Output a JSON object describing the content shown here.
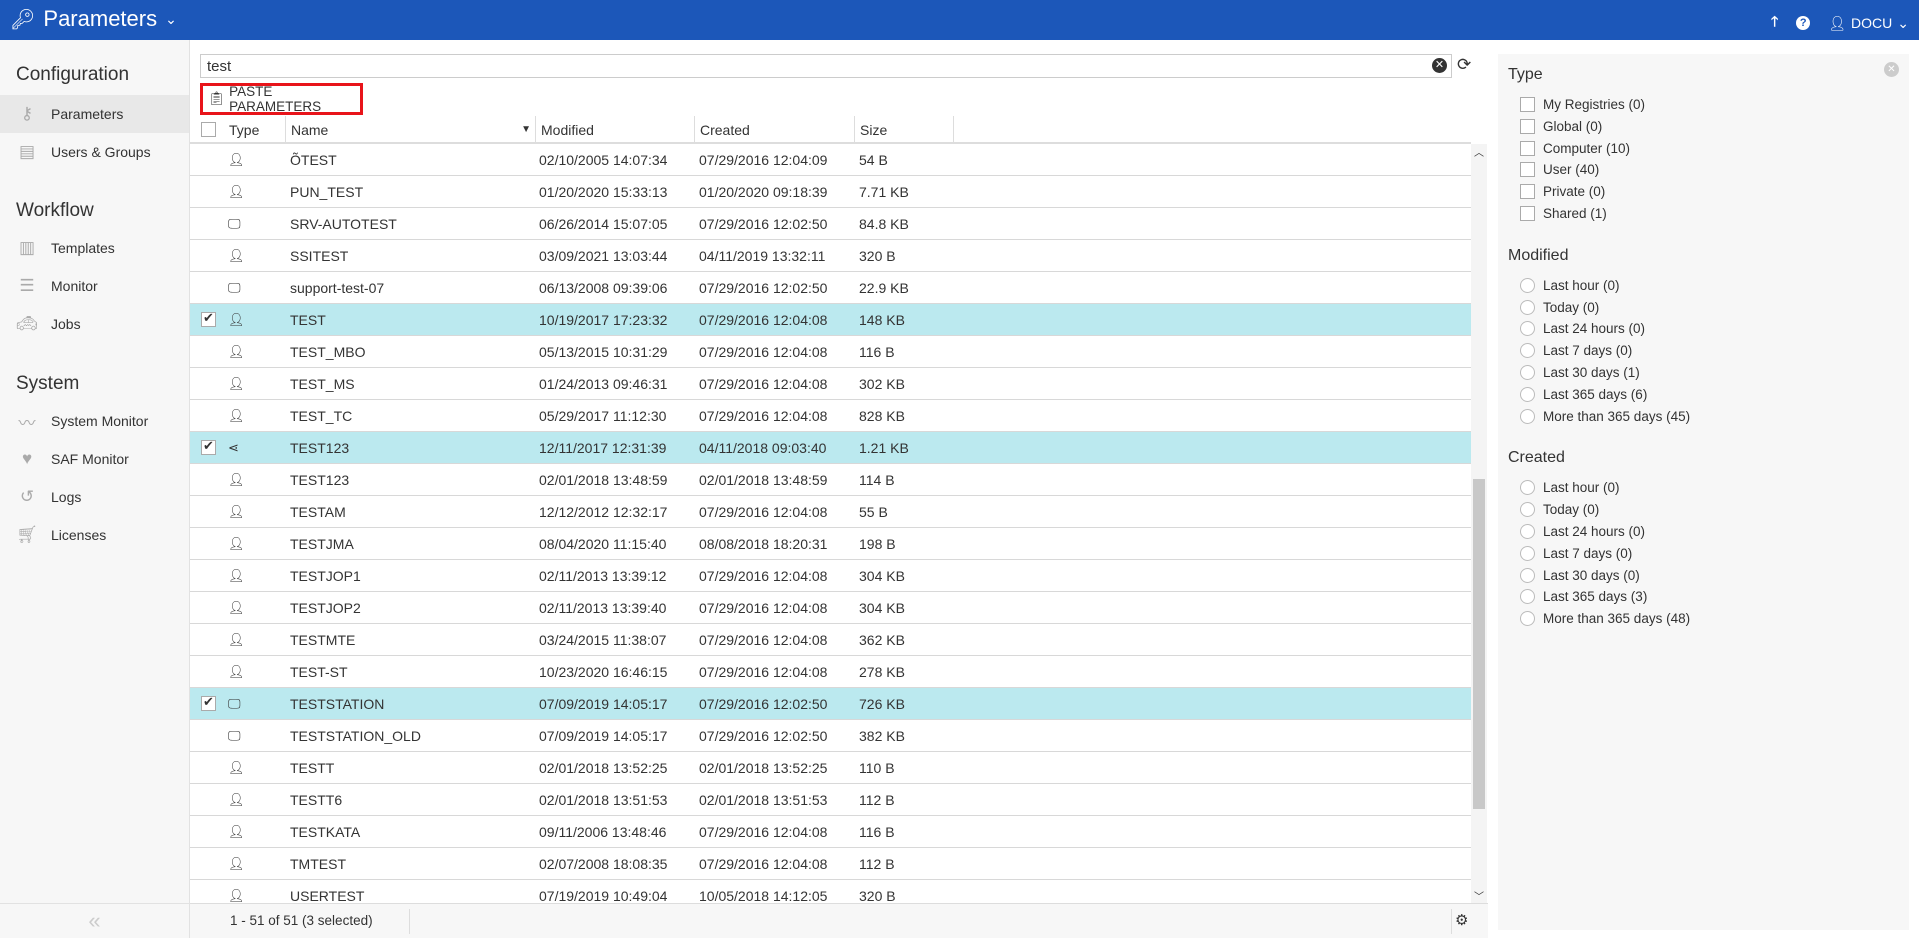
{
  "header": {
    "title": "Parameters",
    "user": "DOCU"
  },
  "sidebar": {
    "sections": [
      {
        "title": "Configuration",
        "items": [
          {
            "label": "Parameters",
            "icon": "key-icon"
          },
          {
            "label": "Users & Groups",
            "icon": "id-card-icon"
          }
        ]
      },
      {
        "title": "Workflow",
        "items": [
          {
            "label": "Templates",
            "icon": "chip-icon"
          },
          {
            "label": "Monitor",
            "icon": "server-icon"
          },
          {
            "label": "Jobs",
            "icon": "taxi-icon"
          }
        ]
      },
      {
        "title": "System",
        "items": [
          {
            "label": "System Monitor",
            "icon": "pulse-icon"
          },
          {
            "label": "SAF Monitor",
            "icon": "heartbeat-icon"
          },
          {
            "label": "Logs",
            "icon": "history-icon"
          },
          {
            "label": "Licenses",
            "icon": "cart-icon"
          }
        ]
      }
    ]
  },
  "search": {
    "value": "test"
  },
  "toolbar": {
    "paste_label": "PASTE PARAMETERS"
  },
  "table": {
    "columns": [
      "Type",
      "Name",
      "Modified",
      "Created",
      "Size"
    ],
    "rows": [
      {
        "type": "user",
        "name": "ÕTEST",
        "modified": "02/10/2005 14:07:34",
        "created": "07/29/2016 12:04:09",
        "size": "54 B",
        "selected": false
      },
      {
        "type": "user",
        "name": "PUN_TEST",
        "modified": "01/20/2020 15:33:13",
        "created": "01/20/2020 09:18:39",
        "size": "7.71 KB",
        "selected": false
      },
      {
        "type": "computer",
        "name": "SRV-AUTOTEST",
        "modified": "06/26/2014 15:07:05",
        "created": "07/29/2016 12:02:50",
        "size": "84.8 KB",
        "selected": false
      },
      {
        "type": "user",
        "name": "SSITEST",
        "modified": "03/09/2021 13:03:44",
        "created": "04/11/2019 13:32:11",
        "size": "320 B",
        "selected": false
      },
      {
        "type": "computer",
        "name": "support-test-07",
        "modified": "06/13/2008 09:39:06",
        "created": "07/29/2016 12:02:50",
        "size": "22.9 KB",
        "selected": false
      },
      {
        "type": "user",
        "name": "TEST",
        "modified": "10/19/2017 17:23:32",
        "created": "07/29/2016 12:04:08",
        "size": "148 KB",
        "selected": true
      },
      {
        "type": "user",
        "name": "TEST_MBO",
        "modified": "05/13/2015 10:31:29",
        "created": "07/29/2016 12:04:08",
        "size": "116 B",
        "selected": false
      },
      {
        "type": "user",
        "name": "TEST_MS",
        "modified": "01/24/2013 09:46:31",
        "created": "07/29/2016 12:04:08",
        "size": "302 KB",
        "selected": false
      },
      {
        "type": "user",
        "name": "TEST_TC",
        "modified": "05/29/2017 11:12:30",
        "created": "07/29/2016 12:04:08",
        "size": "828 KB",
        "selected": false
      },
      {
        "type": "shared",
        "name": "TEST123",
        "modified": "12/11/2017 12:31:39",
        "created": "04/11/2018 09:03:40",
        "size": "1.21 KB",
        "selected": true
      },
      {
        "type": "user",
        "name": "TEST123",
        "modified": "02/01/2018 13:48:59",
        "created": "02/01/2018 13:48:59",
        "size": "114 B",
        "selected": false
      },
      {
        "type": "user",
        "name": "TESTAM",
        "modified": "12/12/2012 12:32:17",
        "created": "07/29/2016 12:04:08",
        "size": "55 B",
        "selected": false
      },
      {
        "type": "user",
        "name": "TESTJMA",
        "modified": "08/04/2020 11:15:40",
        "created": "08/08/2018 18:20:31",
        "size": "198 B",
        "selected": false
      },
      {
        "type": "user",
        "name": "TESTJOP1",
        "modified": "02/11/2013 13:39:12",
        "created": "07/29/2016 12:04:08",
        "size": "304 KB",
        "selected": false
      },
      {
        "type": "user",
        "name": "TESTJOP2",
        "modified": "02/11/2013 13:39:40",
        "created": "07/29/2016 12:04:08",
        "size": "304 KB",
        "selected": false
      },
      {
        "type": "user",
        "name": "TESTMTE",
        "modified": "03/24/2015 11:38:07",
        "created": "07/29/2016 12:04:08",
        "size": "362 KB",
        "selected": false
      },
      {
        "type": "user",
        "name": "TEST-ST",
        "modified": "10/23/2020 16:46:15",
        "created": "07/29/2016 12:04:08",
        "size": "278 KB",
        "selected": false
      },
      {
        "type": "computer",
        "name": "TESTSTATION",
        "modified": "07/09/2019 14:05:17",
        "created": "07/29/2016 12:02:50",
        "size": "726 KB",
        "selected": true
      },
      {
        "type": "computer",
        "name": "TESTSTATION_OLD",
        "modified": "07/09/2019 14:05:17",
        "created": "07/29/2016 12:02:50",
        "size": "382 KB",
        "selected": false
      },
      {
        "type": "user",
        "name": "TESTT",
        "modified": "02/01/2018 13:52:25",
        "created": "02/01/2018 13:52:25",
        "size": "110 B",
        "selected": false
      },
      {
        "type": "user",
        "name": "TESTT6",
        "modified": "02/01/2018 13:51:53",
        "created": "02/01/2018 13:51:53",
        "size": "112 B",
        "selected": false
      },
      {
        "type": "user",
        "name": "TESTKATA",
        "modified": "09/11/2006 13:48:46",
        "created": "07/29/2016 12:04:08",
        "size": "116 B",
        "selected": false
      },
      {
        "type": "user",
        "name": "TMTEST",
        "modified": "02/07/2008 18:08:35",
        "created": "07/29/2016 12:04:08",
        "size": "112 B",
        "selected": false
      },
      {
        "type": "user",
        "name": "USERTEST",
        "modified": "07/19/2019 10:49:04",
        "created": "10/05/2018 14:12:05",
        "size": "320 B",
        "selected": false
      }
    ]
  },
  "footer": {
    "range": "1 - 51 of 51 (3 selected)"
  },
  "filters": {
    "type": {
      "title": "Type",
      "options": [
        "My Registries (0)",
        "Global (0)",
        "Computer (10)",
        "User (40)",
        "Private (0)",
        "Shared (1)"
      ]
    },
    "modified": {
      "title": "Modified",
      "options": [
        "Last hour (0)",
        "Today (0)",
        "Last 24 hours (0)",
        "Last 7 days (0)",
        "Last 30 days (1)",
        "Last 365 days (6)",
        "More than 365 days (45)"
      ]
    },
    "created": {
      "title": "Created",
      "options": [
        "Last hour (0)",
        "Today (0)",
        "Last 24 hours (0)",
        "Last 7 days (0)",
        "Last 30 days (0)",
        "Last 365 days (3)",
        "More than 365 days (48)"
      ]
    }
  },
  "colors": {
    "topbar": "#1c57b9",
    "selected_row": "#bbe9ef",
    "highlight_border": "#e8141a"
  }
}
